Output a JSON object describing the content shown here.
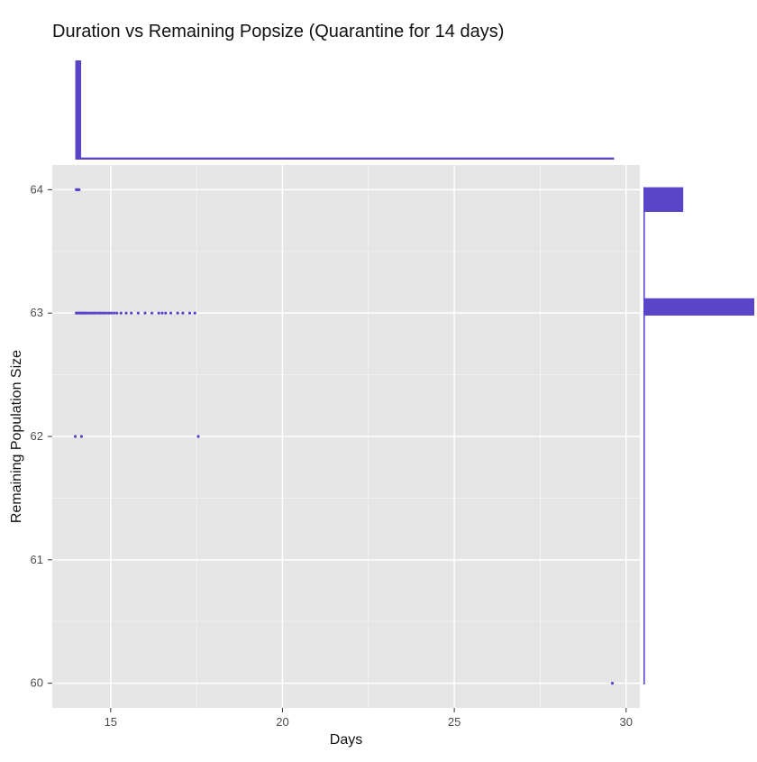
{
  "chart_data": {
    "type": "scatter",
    "title": "Duration vs Remaining Popsize (Quarantine for 14 days)",
    "xlabel": "Days",
    "ylabel": "Remaining Population Size",
    "xlim": [
      13.3,
      30.4
    ],
    "ylim": [
      59.8,
      64.2
    ],
    "x_ticks": [
      15,
      20,
      25,
      30
    ],
    "y_ticks": [
      60,
      61,
      62,
      63,
      64
    ],
    "grid": true,
    "background": "#E5E5E5",
    "point_color": "#5A44C8",
    "marginal_color": "#5A44C8",
    "series": [
      {
        "x": [
          14.0,
          14.02,
          14.05,
          14.08,
          14.0,
          14.03,
          14.06,
          14.1,
          14.13,
          14.17,
          14.2,
          14.24,
          14.28,
          14.33,
          14.38,
          14.43,
          14.48,
          14.53,
          14.58,
          14.64,
          14.7,
          14.76,
          14.82,
          14.88,
          14.95,
          15.02,
          15.1,
          15.18,
          15.3,
          15.45,
          15.6,
          15.8,
          16.0,
          16.2,
          16.4,
          16.5,
          16.6,
          16.75,
          16.95,
          17.1,
          17.3,
          17.45,
          13.97,
          14.15,
          17.55,
          29.6
        ],
        "y": [
          64,
          64,
          64,
          64,
          63,
          63,
          63,
          63,
          63,
          63,
          63,
          63,
          63,
          63,
          63,
          63,
          63,
          63,
          63,
          63,
          63,
          63,
          63,
          63,
          63,
          63,
          63,
          63,
          63,
          63,
          63,
          63,
          63,
          63,
          63,
          63,
          63,
          63,
          63,
          63,
          63,
          63,
          62,
          62,
          62,
          60
        ]
      }
    ],
    "marginal_x": {
      "bins": [
        {
          "x0": 13.97,
          "x1": 14.14,
          "count": 47
        },
        {
          "x0": 14.14,
          "x1": 29.65,
          "count": 1
        }
      ]
    },
    "marginal_y": {
      "bins": [
        {
          "y0": 63.82,
          "y1": 64.02,
          "count": 28
        },
        {
          "y0": 62.98,
          "y1": 63.12,
          "count": 78
        },
        {
          "y0": 59.99,
          "y1": 64.02,
          "count": 1
        }
      ]
    }
  }
}
